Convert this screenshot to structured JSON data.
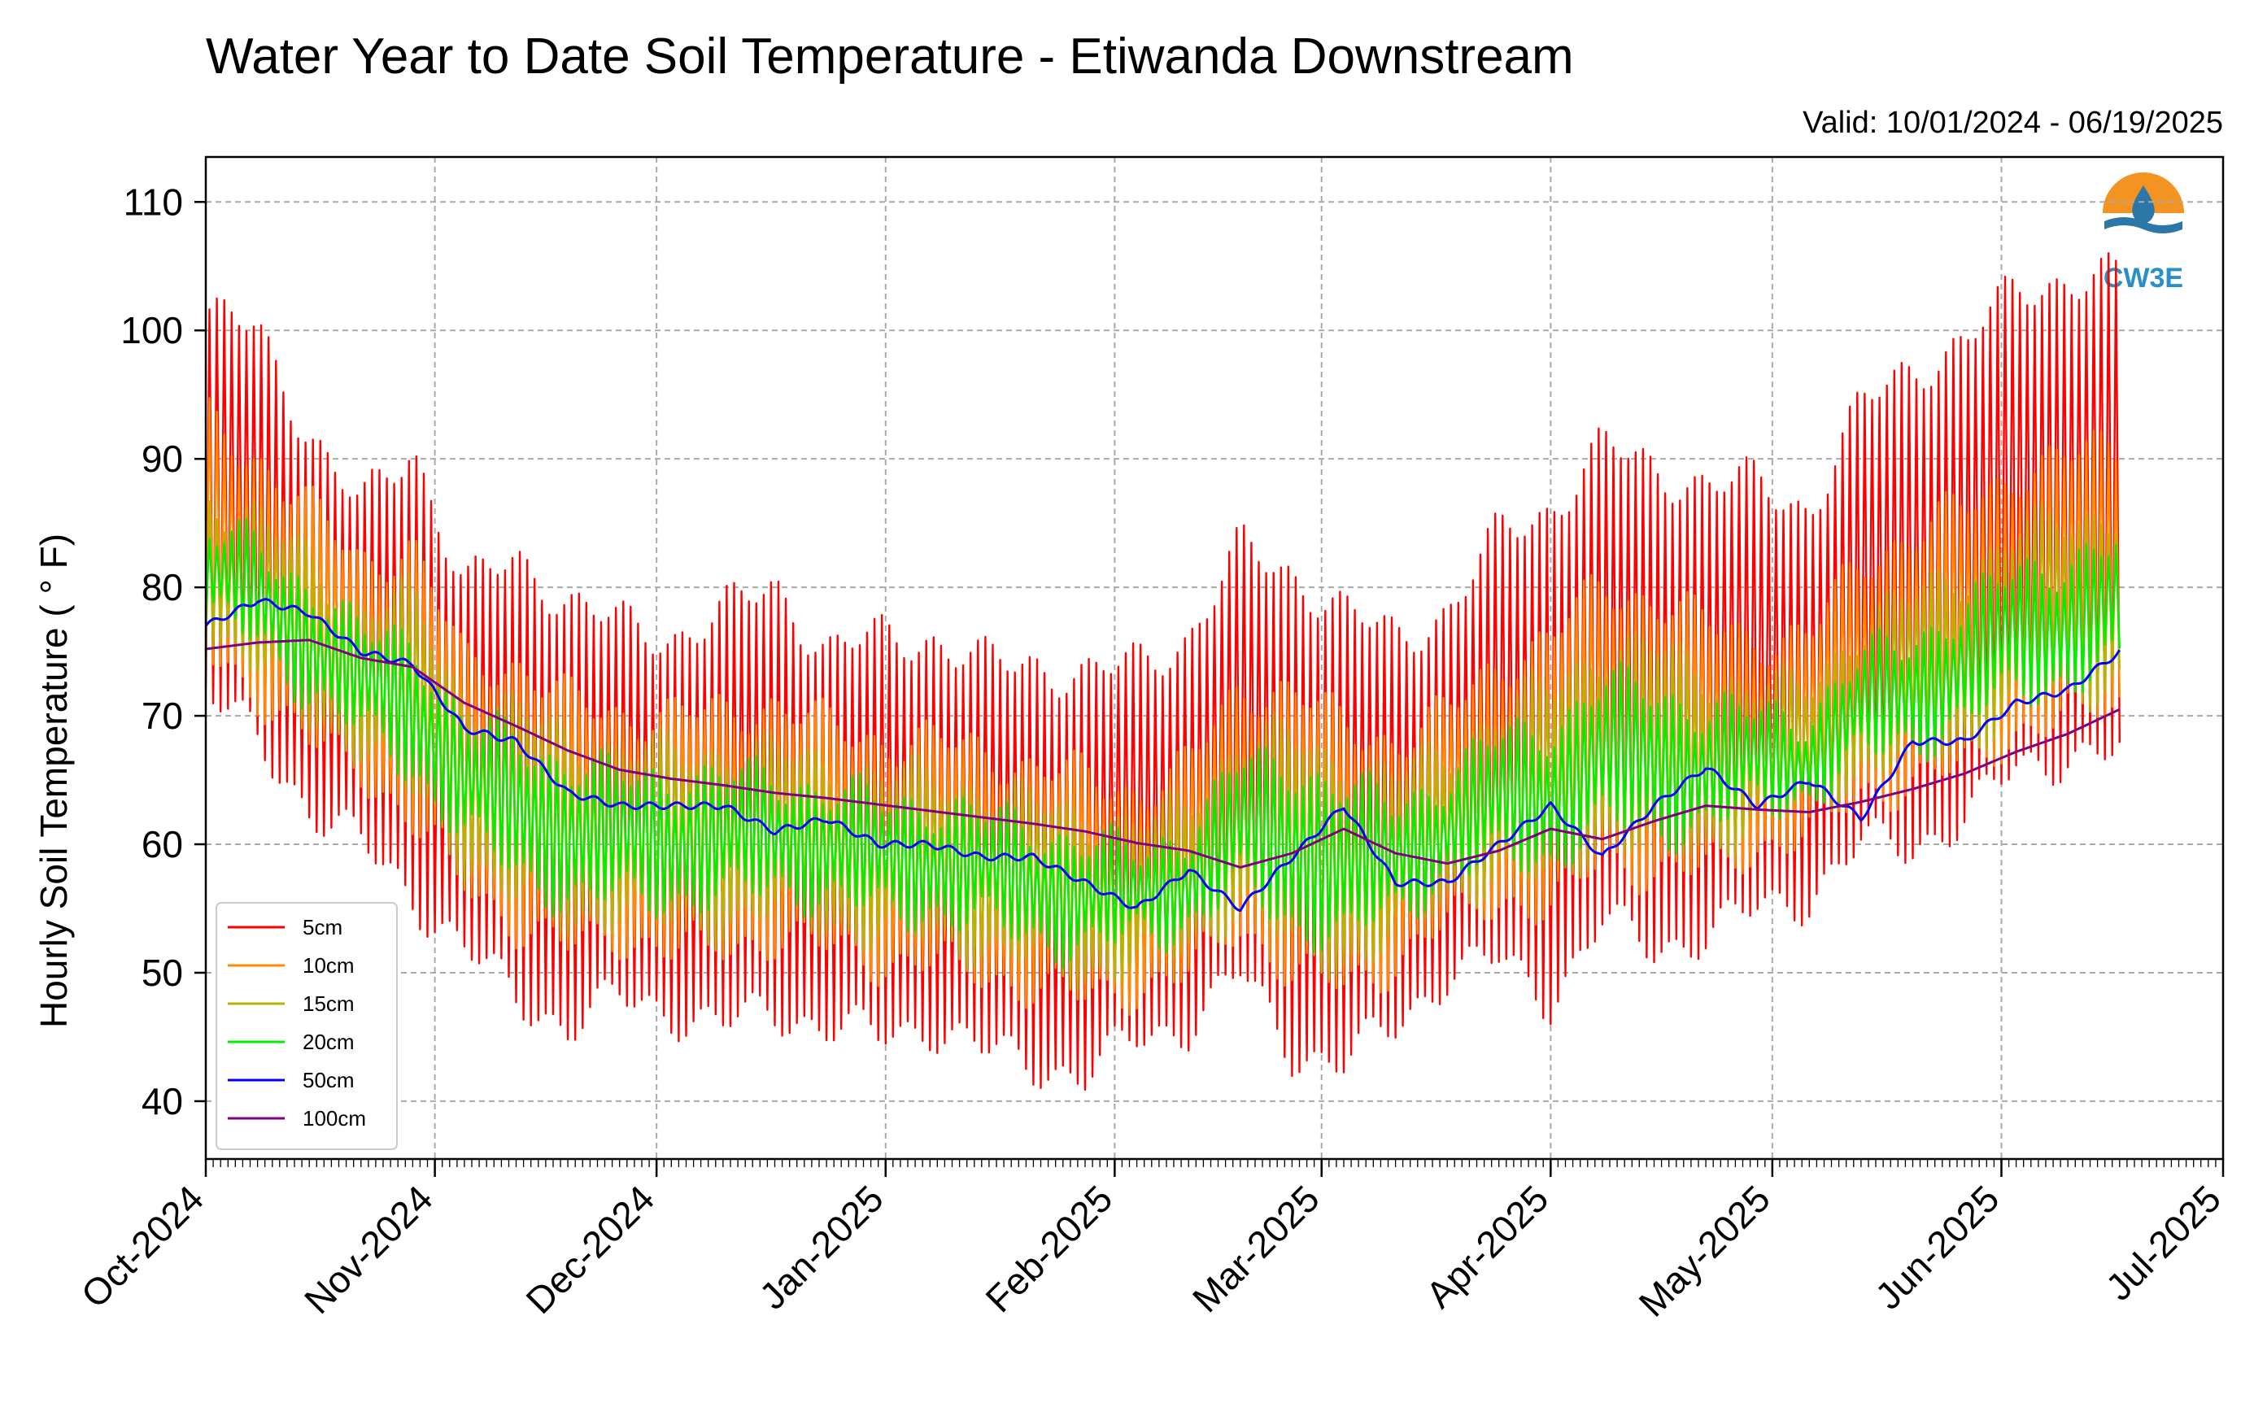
{
  "chart_data": {
    "type": "line",
    "title": "Water Year to Date Soil Temperature - Etiwanda Downstream",
    "subtitle": "Valid: 10/01/2024 - 06/19/2025",
    "xlabel": "",
    "ylabel": "Hourly Soil Temperature ( ° F)",
    "ylim": [
      35.5,
      113.5
    ],
    "xlim": [
      "2024-10-01",
      "2025-07-01"
    ],
    "grid": true,
    "legend_position": "lower-left",
    "y_ticks": [
      "40",
      "50",
      "60",
      "70",
      "80",
      "90",
      "100",
      "110"
    ],
    "x_ticks": [
      "Oct-2024",
      "Nov-2024",
      "Dec-2024",
      "Jan-2025",
      "Feb-2025",
      "Mar-2025",
      "Apr-2025",
      "May-2025",
      "Jun-2025",
      "Jul-2025"
    ],
    "logo": {
      "text": "CW3E"
    },
    "x_dates": [
      "2024-10-01",
      "2024-10-08",
      "2024-10-15",
      "2024-10-22",
      "2024-10-29",
      "2024-11-05",
      "2024-11-12",
      "2024-11-19",
      "2024-11-26",
      "2024-12-03",
      "2024-12-10",
      "2024-12-17",
      "2024-12-24",
      "2024-12-31",
      "2025-01-07",
      "2025-01-14",
      "2025-01-21",
      "2025-01-28",
      "2025-02-04",
      "2025-02-11",
      "2025-02-18",
      "2025-02-25",
      "2025-03-04",
      "2025-03-11",
      "2025-03-18",
      "2025-03-25",
      "2025-04-01",
      "2025-04-08",
      "2025-04-15",
      "2025-04-22",
      "2025-04-29",
      "2025-05-06",
      "2025-05-13",
      "2025-05-20",
      "2025-05-27",
      "2025-06-03",
      "2025-06-10",
      "2025-06-17"
    ],
    "series": [
      {
        "name": "5cm",
        "color": "#ff0000",
        "daily_max": [
          101,
          100,
          92,
          86,
          91,
          80,
          82,
          79,
          77,
          76,
          78,
          80,
          75,
          76,
          76,
          74,
          74,
          73,
          74,
          76,
          83,
          81,
          78,
          76,
          78,
          84,
          86,
          91,
          89,
          88,
          88,
          86,
          94,
          97,
          99,
          103,
          104,
          104
        ],
        "daily_min": [
          72,
          68,
          63,
          60,
          56,
          52,
          48,
          46,
          48,
          47,
          46,
          47,
          46,
          45,
          46,
          44,
          43,
          42,
          45,
          46,
          50,
          44,
          43,
          46,
          50,
          51,
          48,
          54,
          52,
          53,
          55,
          56,
          60,
          60,
          62,
          66,
          67,
          67
        ]
      },
      {
        "name": "10cm",
        "color": "#ff8c00",
        "daily_max": [
          93,
          90,
          86,
          82,
          83,
          74,
          74,
          71,
          70,
          70,
          70,
          71,
          69,
          68,
          68,
          67,
          66,
          65,
          64,
          66,
          72,
          72,
          69,
          68,
          70,
          74,
          76,
          80,
          79,
          77,
          76,
          76,
          82,
          84,
          86,
          89,
          90,
          91
        ],
        "daily_min": [
          75,
          72,
          68,
          66,
          62,
          57,
          54,
          52,
          53,
          52,
          52,
          53,
          52,
          51,
          51,
          50,
          49,
          48,
          49,
          50,
          54,
          50,
          49,
          51,
          54,
          56,
          55,
          59,
          58,
          58,
          60,
          61,
          64,
          65,
          66,
          69,
          70,
          71
        ]
      },
      {
        "name": "15cm",
        "color": "#b5b400",
        "daily_max": [
          87,
          85,
          82,
          78,
          79,
          71,
          70,
          68,
          67,
          67,
          67,
          67,
          66,
          65,
          65,
          64,
          63,
          62,
          61,
          63,
          68,
          68,
          66,
          65,
          67,
          70,
          72,
          75,
          75,
          73,
          72,
          72,
          77,
          79,
          81,
          84,
          85,
          86
        ],
        "daily_min": [
          77,
          74,
          70,
          68,
          64,
          59,
          56,
          54,
          55,
          54,
          54,
          55,
          54,
          53,
          53,
          52,
          51,
          50,
          51,
          52,
          56,
          52,
          51,
          53,
          56,
          58,
          57,
          61,
          60,
          60,
          62,
          63,
          66,
          67,
          68,
          71,
          72,
          73
        ]
      },
      {
        "name": "20cm",
        "color": "#00ee00",
        "daily_max": [
          84,
          83,
          80,
          76,
          76,
          69,
          68,
          66,
          65,
          65,
          65,
          65,
          64,
          63,
          63,
          62,
          61,
          60,
          59,
          61,
          66,
          66,
          64,
          63,
          65,
          68,
          69,
          72,
          72,
          70,
          70,
          70,
          74,
          76,
          78,
          81,
          82,
          83
        ],
        "daily_min": [
          78,
          76,
          72,
          69,
          66,
          61,
          58,
          56,
          56,
          56,
          56,
          57,
          56,
          55,
          55,
          54,
          53,
          52,
          53,
          54,
          57,
          54,
          53,
          55,
          58,
          59,
          59,
          62,
          61,
          62,
          63,
          64,
          67,
          68,
          70,
          72,
          73,
          74
        ]
      },
      {
        "name": "50cm",
        "color": "#0000ff",
        "values": [
          77,
          79,
          78,
          75,
          74,
          69,
          68,
          64,
          63,
          63,
          63,
          61,
          62,
          60,
          60,
          59,
          59,
          57,
          55,
          58,
          55,
          59,
          63,
          57,
          57,
          60,
          63,
          59,
          63,
          66,
          63,
          65,
          62,
          68,
          68,
          71,
          72,
          75
        ]
      },
      {
        "name": "100cm",
        "color": "#800080",
        "values": [
          75.2,
          75.7,
          75.9,
          74.5,
          73.8,
          71,
          69.2,
          67.3,
          65.8,
          65.1,
          64.6,
          64,
          63.6,
          63.1,
          62.6,
          62.1,
          61.6,
          61,
          60.1,
          59.5,
          58.2,
          59.3,
          61.2,
          59.3,
          58.5,
          59.5,
          61.2,
          60.4,
          61.8,
          63,
          62.7,
          62.5,
          63.3,
          64.3,
          65.5,
          67.2,
          68.6,
          70.5
        ]
      }
    ]
  }
}
